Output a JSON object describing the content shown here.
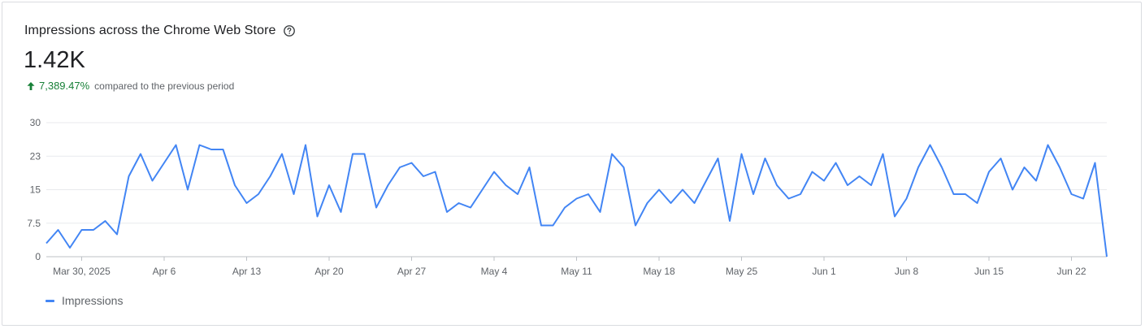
{
  "header": {
    "title": "Impressions across the Chrome Web Store",
    "help_icon": "help-circle-icon",
    "total": "1.42K",
    "delta_value": "7,389.47%",
    "delta_text": "compared to the previous period",
    "delta_icon": "arrow-up-icon"
  },
  "colors": {
    "series": "#4285f4",
    "positive": "#188038",
    "grid": "#e8eaed",
    "axis_text": "#5f6368"
  },
  "chart_data": {
    "type": "line",
    "title": "Impressions across the Chrome Web Store",
    "ylim": [
      0,
      30
    ],
    "y_ticks": [
      "0",
      "7.5",
      "15",
      "23",
      "30"
    ],
    "x_tick_labels": [
      "Mar 30, 2025",
      "Apr 6",
      "Apr 13",
      "Apr 20",
      "Apr 27",
      "May 4",
      "May 11",
      "May 18",
      "May 25",
      "Jun 1",
      "Jun 8",
      "Jun 15",
      "Jun 22"
    ],
    "x_start": "Mar 27",
    "x_end": "Jun 25",
    "grid": true,
    "legend": "bottom-left",
    "series": [
      {
        "name": "Impressions",
        "values": [
          3,
          6,
          2,
          6,
          6,
          8,
          5,
          18,
          23,
          17,
          21,
          25,
          15,
          25,
          24,
          24,
          16,
          12,
          14,
          18,
          23,
          14,
          25,
          9,
          16,
          10,
          23,
          23,
          11,
          16,
          20,
          21,
          18,
          19,
          10,
          12,
          11,
          15,
          19,
          16,
          14,
          20,
          7,
          7,
          11,
          13,
          14,
          10,
          23,
          20,
          7,
          12,
          15,
          12,
          15,
          12,
          17,
          22,
          8,
          23,
          14,
          22,
          16,
          13,
          14,
          19,
          17,
          21,
          16,
          18,
          16,
          23,
          9,
          13,
          20,
          25,
          20,
          14,
          14,
          12,
          19,
          22,
          15,
          20,
          17,
          25,
          20,
          14,
          13,
          21,
          0
        ]
      }
    ]
  },
  "legend": {
    "label": "Impressions"
  }
}
